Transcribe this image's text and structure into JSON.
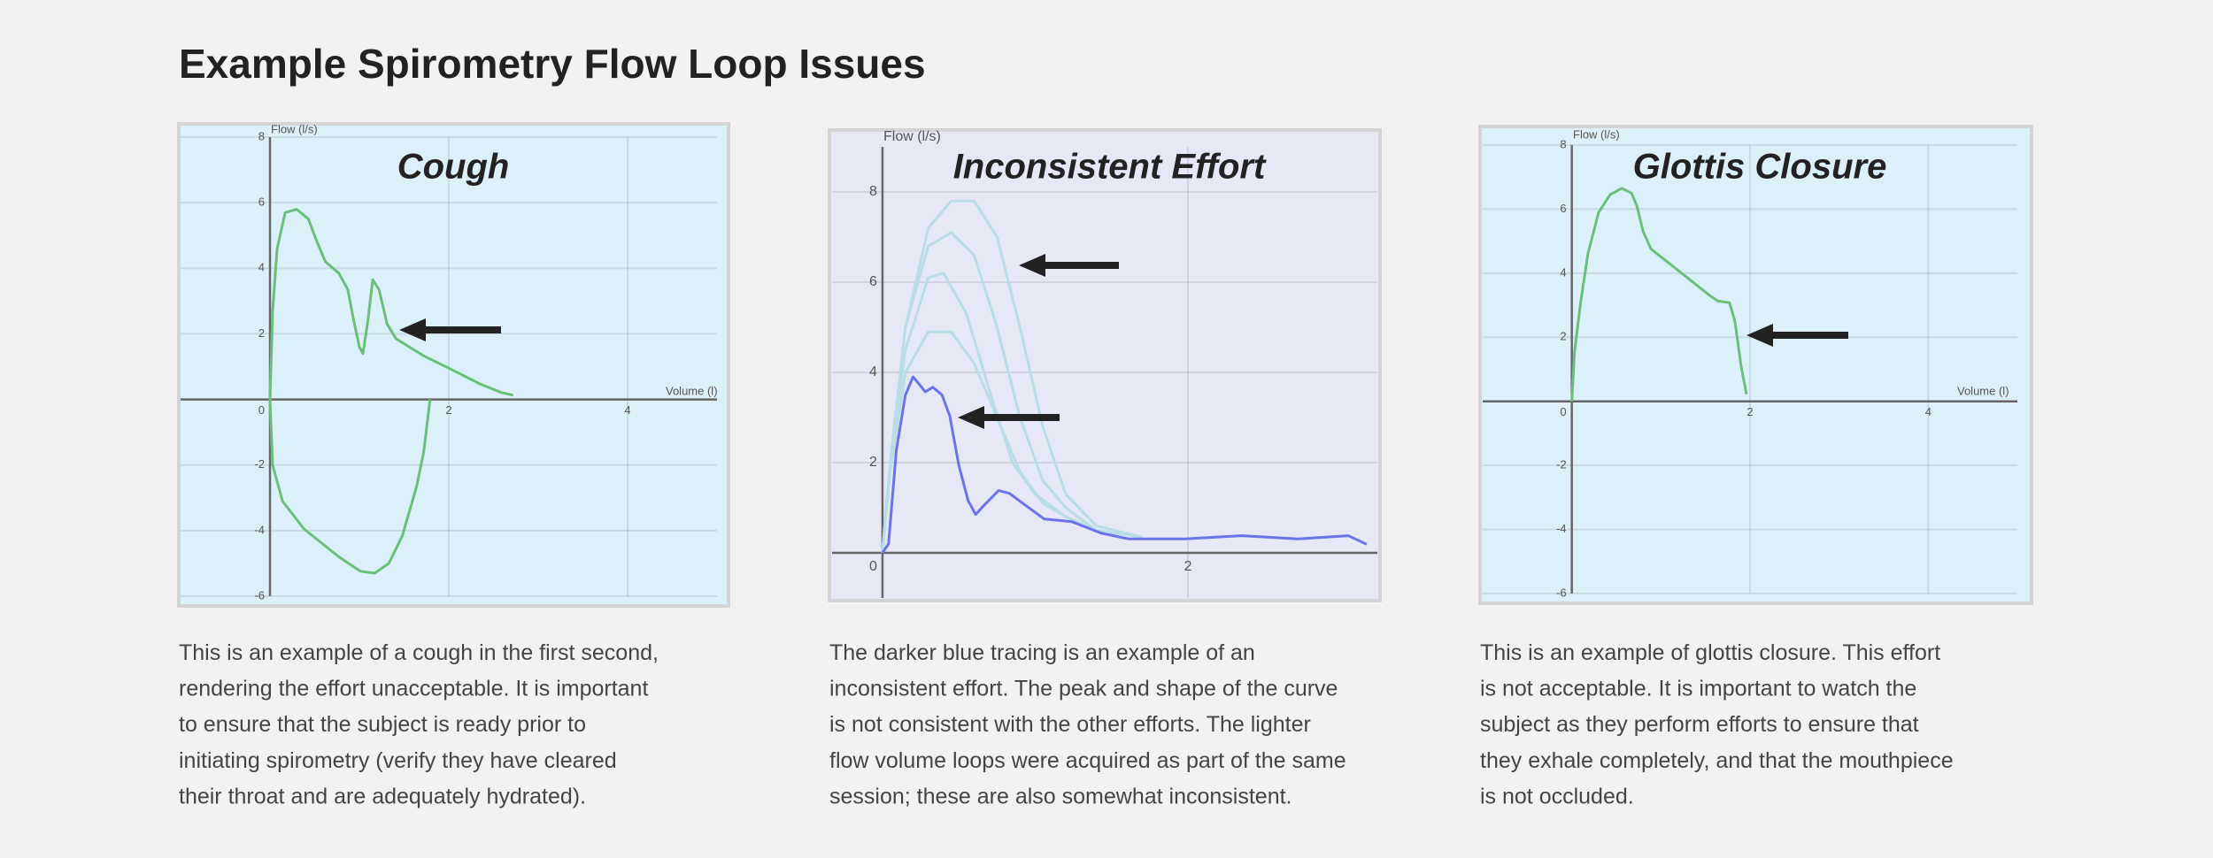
{
  "title": "Example Spirometry Flow Loop Issues",
  "chart_data": [
    {
      "type": "line",
      "title": "Cough",
      "ylabel": "Flow (l/s)",
      "xlabel": "Volume (l)",
      "background": "#dcf0fa",
      "grid": true,
      "xlim": [
        -1,
        5
      ],
      "ylim": [
        -6,
        8
      ],
      "xticks": [
        0,
        2,
        4
      ],
      "yticks": [
        -6,
        -4,
        -2,
        2,
        4,
        6,
        8
      ],
      "series": [
        {
          "color": "#6cbf7a",
          "x": [
            0,
            0.03,
            0.08,
            0.17,
            0.3,
            0.43,
            0.52,
            0.62,
            0.77,
            0.87,
            0.93,
            1.0,
            1.04,
            1.09,
            1.15,
            1.22,
            1.31,
            1.41,
            1.72,
            2.04,
            2.35,
            2.59,
            2.72
          ],
          "values": [
            0,
            2.7,
            4.6,
            5.7,
            5.8,
            5.5,
            4.85,
            4.2,
            3.85,
            3.35,
            2.5,
            1.6,
            1.4,
            2.3,
            3.65,
            3.35,
            2.3,
            1.85,
            1.33,
            0.9,
            0.47,
            0.21,
            0.13
          ]
        },
        {
          "color": "#6cbf7a",
          "x": [
            0,
            0.03,
            0.14,
            0.38,
            0.77,
            1.01,
            1.17,
            1.33,
            1.48,
            1.64,
            1.72,
            1.79
          ],
          "values": [
            0,
            -2.0,
            -3.1,
            -3.95,
            -4.8,
            -5.24,
            -5.3,
            -5.0,
            -4.16,
            -2.66,
            -1.6,
            0
          ]
        }
      ]
    },
    {
      "type": "line",
      "title": "Inconsistent Effort",
      "ylabel": "Flow (l/s)",
      "background": "#e6e8f6",
      "grid": true,
      "xlim": [
        -0.33,
        3.24
      ],
      "ylim": [
        -1,
        9
      ],
      "xticks": [
        0,
        2
      ],
      "yticks": [
        2,
        4,
        6,
        8
      ],
      "series": [
        {
          "color": "#b9dde6",
          "x": [
            0,
            0.05,
            0.15,
            0.3,
            0.45,
            0.6,
            0.75,
            0.9,
            1.05,
            1.2,
            1.4,
            1.7
          ],
          "values": [
            0,
            2,
            5,
            7.2,
            7.8,
            7.8,
            7,
            5,
            2.8,
            1.3,
            0.6,
            0.35
          ]
        },
        {
          "color": "#b9dde6",
          "x": [
            0,
            0.05,
            0.15,
            0.3,
            0.45,
            0.6,
            0.75,
            0.9,
            1.05,
            1.2,
            1.4,
            1.7
          ],
          "values": [
            0,
            2,
            5,
            6.8,
            7.1,
            6.6,
            5,
            3,
            1.6,
            1,
            0.5,
            0.35
          ]
        },
        {
          "color": "#b9dde6",
          "x": [
            0,
            0.05,
            0.15,
            0.3,
            0.4,
            0.55,
            0.7,
            0.85,
            1.0,
            1.2,
            1.4,
            1.7
          ],
          "values": [
            0,
            2,
            4.5,
            6.1,
            6.2,
            5.3,
            3.6,
            2,
            1.3,
            0.8,
            0.5,
            0.35
          ]
        },
        {
          "color": "#b9dde6",
          "x": [
            0,
            0.05,
            0.15,
            0.3,
            0.45,
            0.6,
            0.75,
            0.9,
            1.05,
            1.2,
            1.4,
            1.7
          ],
          "values": [
            0,
            1.8,
            4,
            4.9,
            4.9,
            4.2,
            3,
            1.8,
            1.1,
            0.8,
            0.5,
            0.35
          ]
        },
        {
          "color": "#6b73e6",
          "x": [
            0,
            0.04,
            0.09,
            0.15,
            0.2,
            0.28,
            0.33,
            0.39,
            0.44,
            0.5,
            0.56,
            0.61,
            0.67,
            0.76,
            0.83,
            0.93,
            1.06,
            1.24,
            1.43,
            1.61,
            1.98,
            2.35,
            2.72,
            3.05,
            3.17
          ],
          "values": [
            0,
            0.2,
            2.26,
            3.5,
            3.9,
            3.57,
            3.67,
            3.5,
            3.04,
            1.94,
            1.16,
            0.85,
            1.07,
            1.38,
            1.32,
            1.07,
            0.75,
            0.69,
            0.44,
            0.31,
            0.31,
            0.38,
            0.31,
            0.38,
            0.19
          ]
        }
      ]
    },
    {
      "type": "line",
      "title": "Glottis Closure",
      "ylabel": "Flow (l/s)",
      "xlabel": "Volume (l)",
      "background": "#dcf0fa",
      "grid": true,
      "xlim": [
        -1,
        5
      ],
      "ylim": [
        -6,
        8
      ],
      "xticks": [
        0,
        2,
        4
      ],
      "yticks": [
        -6,
        -4,
        -2,
        2,
        4,
        6,
        8
      ],
      "series": [
        {
          "color": "#6cbf7a",
          "x": [
            0,
            0.03,
            0.1,
            0.18,
            0.3,
            0.43,
            0.56,
            0.67,
            0.73,
            0.8,
            0.89,
            1.11,
            1.35,
            1.55,
            1.64,
            1.77,
            1.83,
            1.9,
            1.96
          ],
          "values": [
            0,
            1.54,
            3.1,
            4.6,
            5.9,
            6.45,
            6.65,
            6.5,
            6.1,
            5.3,
            4.75,
            4.27,
            3.74,
            3.3,
            3.13,
            3.08,
            2.5,
            1.1,
            0.22
          ]
        }
      ]
    }
  ],
  "descriptions": [
    [
      "This is an example of a cough in the first second,",
      "rendering the effort unacceptable. It is important",
      "to ensure that the subject is ready prior to",
      "initiating spirometry (verify they have cleared",
      "their throat and are adequately hydrated)."
    ],
    [
      "The darker blue tracing is an example of an",
      "inconsistent effort. The peak and shape of the curve",
      "is not consistent with the other efforts. The lighter",
      "flow volume loops were acquired as part of the same",
      "session; these are also somewhat inconsistent."
    ],
    [
      "This is an example of glottis closure. This effort",
      "is not acceptable. It is important to watch the",
      "subject as they perform efforts to ensure that",
      "they exhale completely, and that the mouthpiece",
      "is not occluded."
    ]
  ]
}
